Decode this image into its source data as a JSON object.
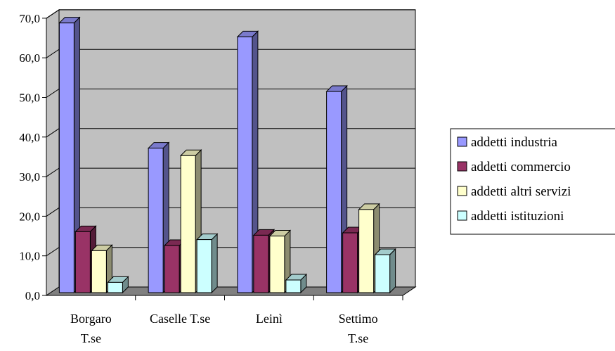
{
  "chart_data": {
    "type": "bar",
    "style": "3d-clustered-column",
    "title": "",
    "xlabel": "",
    "ylabel": "",
    "categories": [
      [
        "Borgaro",
        "T.se"
      ],
      [
        "Caselle T.se"
      ],
      [
        "Leinì"
      ],
      [
        "Settimo",
        "T.se"
      ]
    ],
    "series": [
      {
        "name": "addetti industria",
        "color": "#9999ff",
        "values": [
          68.8,
          37.2,
          65.3,
          51.5
        ]
      },
      {
        "name": "addetti commercio",
        "color": "#993366",
        "values": [
          16.1,
          12.6,
          15.2,
          15.8
        ]
      },
      {
        "name": "addetti altri servizi",
        "color": "#ffffcc",
        "values": [
          11.3,
          35.3,
          15.0,
          21.7
        ]
      },
      {
        "name": "addetti istituzioni",
        "color": "#ccffff",
        "values": [
          3.3,
          14.1,
          3.9,
          10.3
        ]
      }
    ],
    "ylim": [
      0,
      70
    ],
    "yticks": [
      "0,0",
      "10,0",
      "20,0",
      "30,0",
      "40,0",
      "50,0",
      "60,0",
      "70,0"
    ],
    "grid": true,
    "wall_color": "#c0c0c0",
    "floor_color": "#808080",
    "legend_position": "right"
  }
}
